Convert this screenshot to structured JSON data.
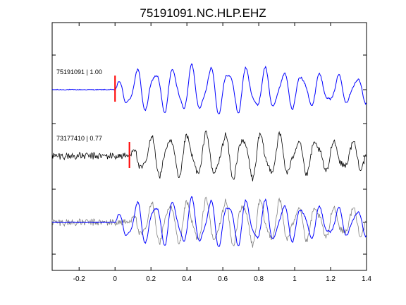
{
  "chart_data": {
    "type": "line",
    "title": "75191091.NC.HLP.EHZ",
    "xlabel": "",
    "ylabel": "",
    "xlim": [
      -0.35,
      1.4
    ],
    "x_ticks": [
      -0.2,
      0,
      0.2,
      0.4,
      0.6,
      0.8,
      1,
      1.2,
      1.4
    ],
    "x_tick_labels": [
      "-0.2",
      "0",
      "0.2",
      "0.4",
      "0.6",
      "0.8",
      "1",
      "1.2",
      "1.4"
    ],
    "grid": false,
    "colors": {
      "reference": "#0000ff",
      "candidate": "#000000",
      "overlay": "#808080",
      "pick": "#ff0000"
    },
    "traces": [
      {
        "label": "75191091 | 1.00",
        "event_id": "75191091",
        "correlation": 1.0,
        "color": "#0000ff",
        "pick_time": 0.0
      },
      {
        "label": "73177410 | 0.77",
        "event_id": "73177410",
        "correlation": 0.77,
        "color": "#000000",
        "pick_time": 0.08
      },
      {
        "label": "",
        "overlay": true,
        "colors": [
          "#0000ff",
          "#808080"
        ]
      }
    ]
  }
}
